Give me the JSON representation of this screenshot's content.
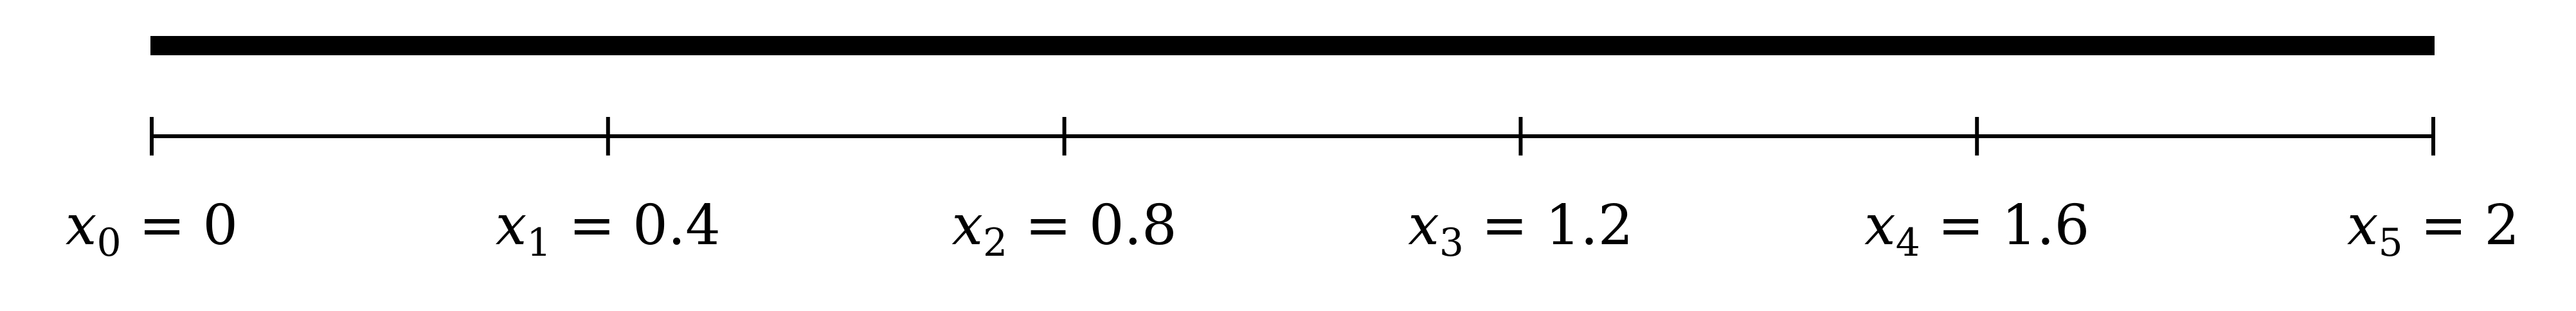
{
  "diagram": {
    "domain_start": 0,
    "domain_end": 2,
    "bar_color": "#000000",
    "axis_color": "#000000",
    "nodes": [
      {
        "symbol": "x",
        "index": "0",
        "value": "0"
      },
      {
        "symbol": "x",
        "index": "1",
        "value": "0.4"
      },
      {
        "symbol": "x",
        "index": "2",
        "value": "0.8"
      },
      {
        "symbol": "x",
        "index": "3",
        "value": "1.2"
      },
      {
        "symbol": "x",
        "index": "4",
        "value": "1.6"
      },
      {
        "symbol": "x",
        "index": "5",
        "value": "2"
      }
    ]
  }
}
